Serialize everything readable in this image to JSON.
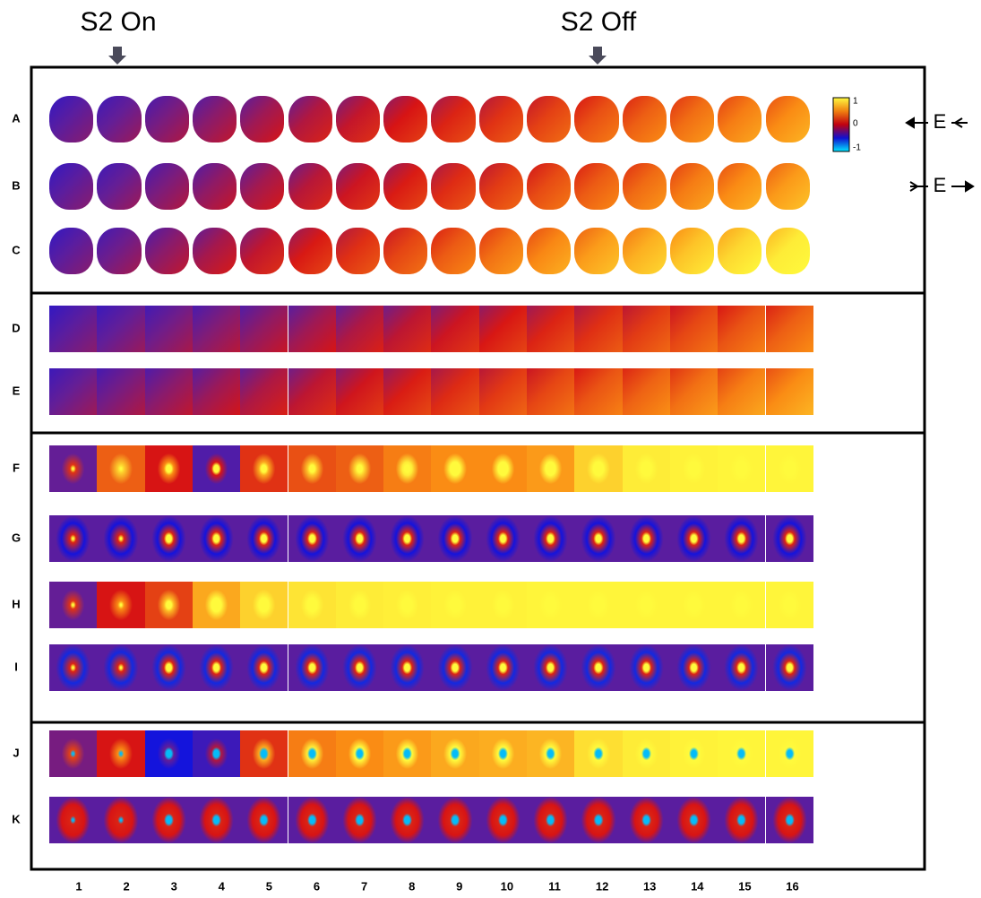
{
  "markers": {
    "on": "S2 On",
    "off": "S2 Off"
  },
  "rows": [
    "A",
    "B",
    "C",
    "D",
    "E",
    "F",
    "G",
    "H",
    "I",
    "J",
    "K"
  ],
  "columns": [
    1,
    2,
    3,
    4,
    5,
    6,
    7,
    8,
    9,
    10,
    11,
    12,
    13,
    14,
    15,
    16
  ],
  "colorbar": {
    "ticks": [
      "1",
      "0",
      "-1"
    ]
  },
  "field_labels": [
    "E",
    "E"
  ]
}
